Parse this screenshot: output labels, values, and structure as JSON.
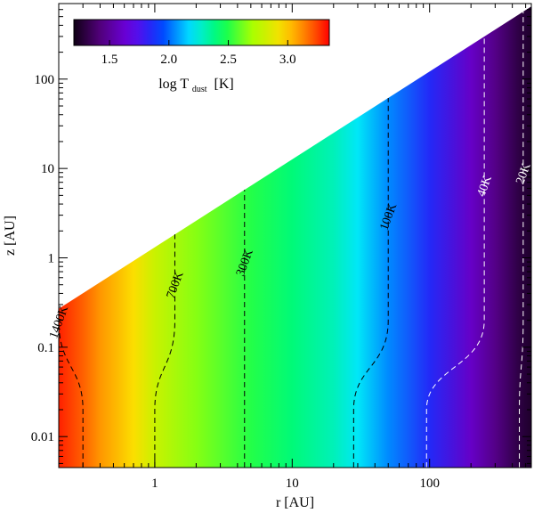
{
  "chart_data": {
    "type": "heatmap",
    "title": "",
    "xlabel": "r [AU]",
    "ylabel": "z [AU]",
    "xscale": "log",
    "yscale": "log",
    "xlim": [
      0.2,
      550
    ],
    "ylim": [
      0.0045,
      700
    ],
    "xticks": [
      {
        "value": 1,
        "label": "1"
      },
      {
        "value": 10,
        "label": "10"
      },
      {
        "value": 100,
        "label": "100"
      }
    ],
    "yticks": [
      {
        "value": 0.01,
        "label": "0.01"
      },
      {
        "value": 0.1,
        "label": "0.1"
      },
      {
        "value": 1,
        "label": "1"
      },
      {
        "value": 10,
        "label": "10"
      },
      {
        "value": 100,
        "label": "100"
      }
    ],
    "domain_upper_boundary": [
      [
        0.2,
        0.27
      ],
      [
        550,
        650
      ]
    ],
    "temperature_profile": {
      "r": [
        0.2,
        0.3,
        0.4,
        0.7,
        1.0,
        2.0,
        5.0,
        10,
        20,
        30,
        50,
        100,
        200,
        300,
        450,
        550
      ],
      "log_T_midplane": [
        3.3,
        3.2,
        3.1,
        2.95,
        2.8,
        2.65,
        2.5,
        2.4,
        2.3,
        2.2,
        2.05,
        1.85,
        1.6,
        1.45,
        1.3,
        1.25
      ]
    },
    "colorbar": {
      "label": "log T",
      "label_subscript": "dust",
      "label_unit": "[K]",
      "range": [
        1.2,
        3.35
      ],
      "ticks": [
        1.5,
        2.0,
        2.5,
        3.0
      ],
      "tick_labels": [
        "1.5",
        "2.0",
        "2.5",
        "3.0"
      ],
      "colormap": "rainbow",
      "placement": "top-left"
    },
    "contours": [
      {
        "label": "1400K",
        "r_mid": 0.3,
        "r_top": 0.2
      },
      {
        "label": "700K",
        "r_mid": 1.0,
        "r_top": 1.4
      },
      {
        "label": "300K",
        "r_mid": 4.5,
        "r_top": 4.5
      },
      {
        "label": "100K",
        "r_mid": 28,
        "r_top": 50
      },
      {
        "label": "40K",
        "r_mid": 95,
        "r_top": 250
      },
      {
        "label": "20K",
        "r_mid": 450,
        "r_top": 480
      }
    ]
  }
}
